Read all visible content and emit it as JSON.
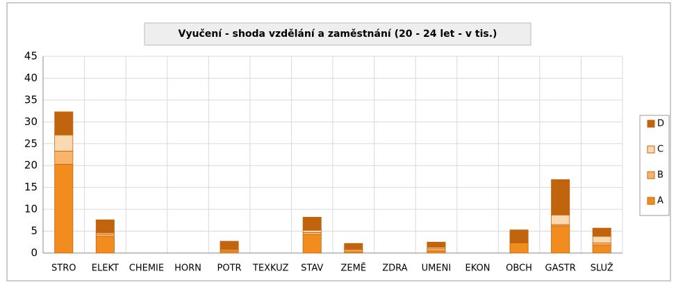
{
  "chart_data": {
    "type": "stacked_bar",
    "title": "Vyučení - shoda vzdělání a zaměstnání (20 - 24 let - v tis.)",
    "categories": [
      "STRO",
      "ELEKT",
      "CHEMIE",
      "HORN",
      "POTR",
      "TEXKUZ",
      "STAV",
      "ZEMĚ",
      "ZDRA",
      "UMENI",
      "EKON",
      "OBCH",
      "GASTR",
      "SLUŽ"
    ],
    "series": [
      {
        "name": "A",
        "color": "#f28c1f",
        "values": [
          20.3,
          3.8,
          0,
          0,
          0.5,
          0,
          4.2,
          0.3,
          0,
          0.5,
          0,
          2.3,
          6.2,
          1.8
        ]
      },
      {
        "name": "B",
        "color": "#f9b46b",
        "values": [
          3.0,
          0.5,
          0,
          0,
          0.3,
          0,
          0.5,
          0.4,
          0,
          0.5,
          0,
          0.1,
          0.3,
          0.5
        ]
      },
      {
        "name": "C",
        "color": "#fcd9b0",
        "values": [
          3.7,
          0.3,
          0,
          0,
          0.1,
          0,
          0.5,
          0.2,
          0,
          0.3,
          0,
          0.1,
          2.2,
          1.5
        ]
      },
      {
        "name": "D",
        "color": "#c0640e",
        "values": [
          5.3,
          3.0,
          0,
          0,
          1.8,
          0,
          3.0,
          1.3,
          0,
          1.2,
          0,
          2.8,
          8.1,
          1.9
        ]
      }
    ],
    "ylim": [
      0,
      45
    ],
    "yticks": [
      0,
      5,
      10,
      15,
      20,
      25,
      30,
      35,
      40,
      45
    ],
    "grid": true,
    "legend": "right"
  }
}
